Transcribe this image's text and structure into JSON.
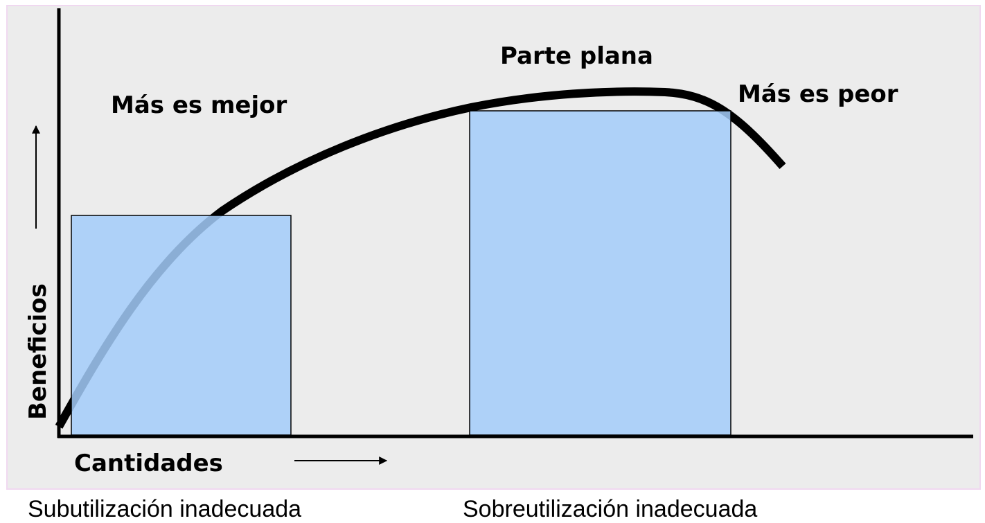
{
  "diagram": {
    "regions": [
      "Más es mejor",
      "Parte plana",
      "Más es peor"
    ],
    "y_axis_label": "Beneficios",
    "x_axis_label": "Cantidades",
    "captions": [
      "Subutilización inadecuada",
      "Sobreutilización inadecuada"
    ]
  }
}
